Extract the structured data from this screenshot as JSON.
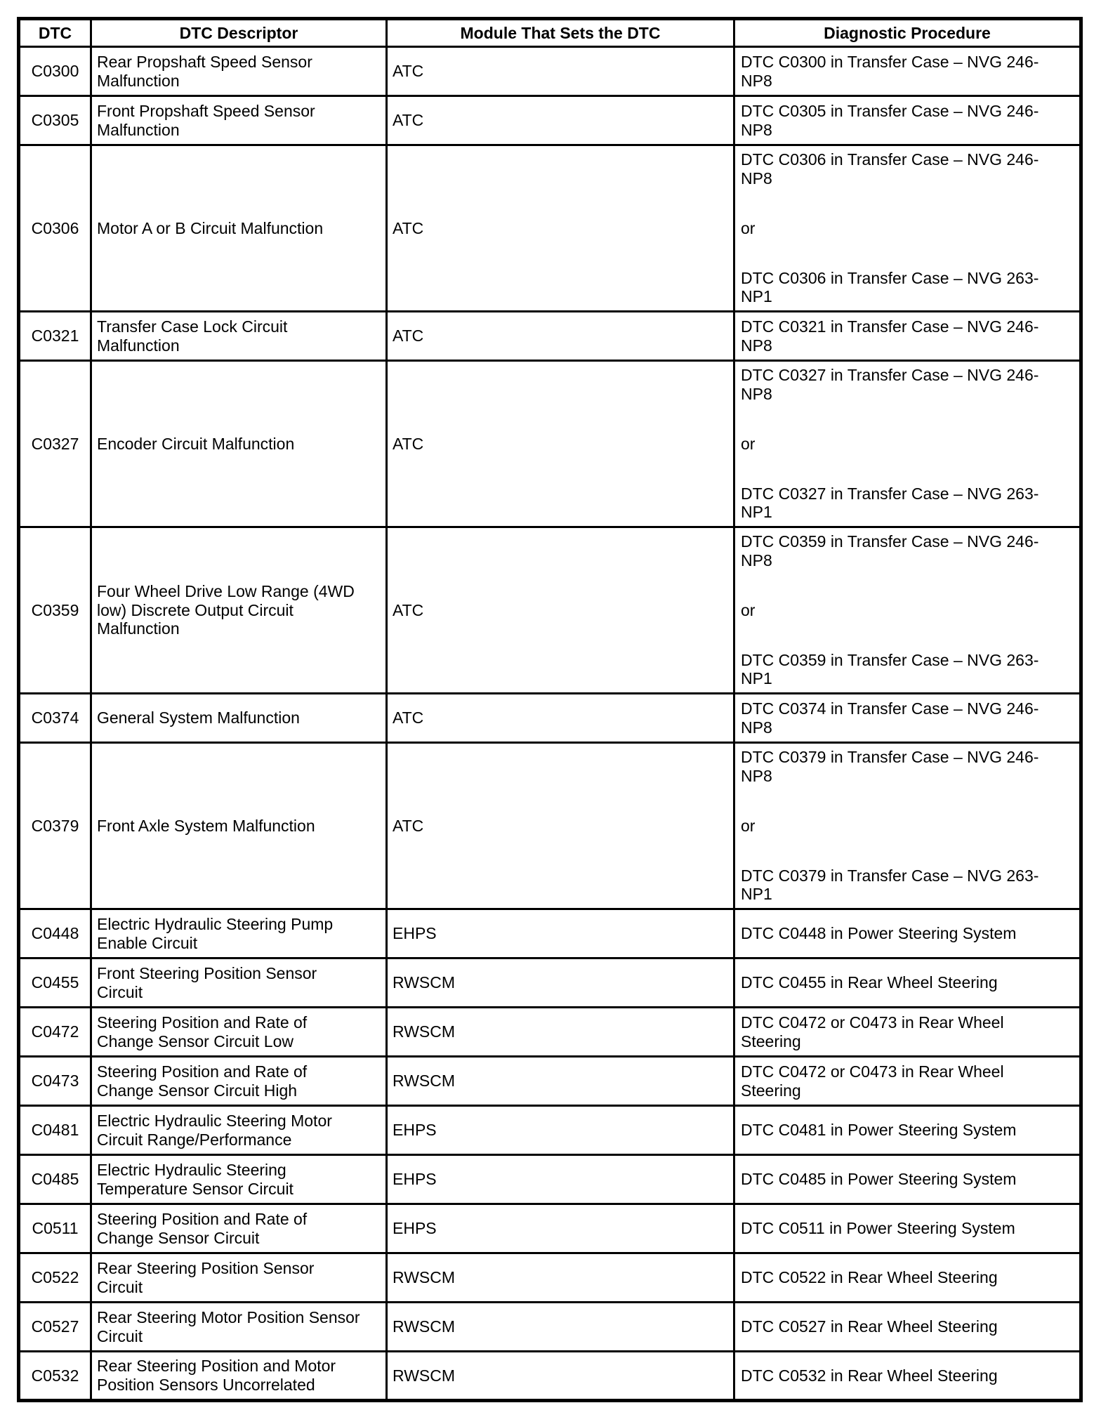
{
  "table": {
    "headers": [
      "DTC",
      "DTC Descriptor",
      "Module That Sets the DTC",
      "Diagnostic Procedure"
    ],
    "rows": [
      {
        "dtc": "C0300",
        "descriptor": "Rear Propshaft Speed Sensor Malfunction",
        "module": "ATC",
        "procedure": [
          "DTC C0300 in Transfer Case – NVG 246-NP8"
        ]
      },
      {
        "dtc": "C0305",
        "descriptor": "Front Propshaft Speed Sensor Malfunction",
        "module": "ATC",
        "procedure": [
          "DTC C0305 in Transfer Case – NVG 246-NP8"
        ]
      },
      {
        "dtc": "C0306",
        "descriptor": "Motor A or B Circuit Malfunction",
        "module": "ATC",
        "procedure": [
          "DTC C0306 in Transfer Case – NVG 246-NP8",
          "or",
          "DTC C0306 in Transfer Case – NVG 263-NP1"
        ]
      },
      {
        "dtc": "C0321",
        "descriptor": "Transfer Case Lock Circuit Malfunction",
        "module": "ATC",
        "procedure": [
          "DTC C0321 in Transfer Case – NVG 246-NP8"
        ]
      },
      {
        "dtc": "C0327",
        "descriptor": "Encoder Circuit Malfunction",
        "module": "ATC",
        "procedure": [
          "DTC C0327 in Transfer Case – NVG 246-NP8",
          "or",
          "DTC C0327 in Transfer Case – NVG 263-NP1"
        ]
      },
      {
        "dtc": "C0359",
        "descriptor": "Four Wheel Drive Low Range (4WD low) Discrete Output Circuit Malfunction",
        "module": "ATC",
        "procedure": [
          "DTC C0359 in Transfer Case – NVG 246-NP8",
          "or",
          "DTC C0359 in Transfer Case – NVG 263-NP1"
        ]
      },
      {
        "dtc": "C0374",
        "descriptor": "General System Malfunction",
        "module": "ATC",
        "procedure": [
          "DTC C0374 in Transfer Case – NVG 246-NP8"
        ]
      },
      {
        "dtc": "C0379",
        "descriptor": "Front Axle System Malfunction",
        "module": "ATC",
        "procedure": [
          "DTC C0379 in Transfer Case – NVG 246-NP8",
          "or",
          "DTC C0379 in Transfer Case – NVG 263-NP1"
        ]
      },
      {
        "dtc": "C0448",
        "descriptor": "Electric Hydraulic Steering Pump Enable Circuit",
        "module": "EHPS",
        "procedure": [
          "DTC C0448 in Power Steering System"
        ]
      },
      {
        "dtc": "C0455",
        "descriptor": "Front Steering Position Sensor Circuit",
        "module": "RWSCM",
        "procedure": [
          "DTC C0455 in Rear Wheel Steering"
        ]
      },
      {
        "dtc": "C0472",
        "descriptor": "Steering Position and Rate of Change Sensor Circuit Low",
        "module": "RWSCM",
        "procedure": [
          "DTC C0472 or C0473 in Rear Wheel Steering"
        ]
      },
      {
        "dtc": "C0473",
        "descriptor": "Steering Position and Rate of Change Sensor Circuit High",
        "module": "RWSCM",
        "procedure": [
          "DTC C0472 or C0473 in Rear Wheel Steering"
        ]
      },
      {
        "dtc": "C0481",
        "descriptor": "Electric Hydraulic Steering Motor Circuit Range/Performance",
        "module": "EHPS",
        "procedure": [
          "DTC C0481 in Power Steering System"
        ]
      },
      {
        "dtc": "C0485",
        "descriptor": "Electric Hydraulic Steering Temperature Sensor Circuit",
        "module": "EHPS",
        "procedure": [
          "DTC C0485 in Power Steering System"
        ]
      },
      {
        "dtc": "C0511",
        "descriptor": "Steering Position and Rate of Change Sensor Circuit",
        "module": "EHPS",
        "procedure": [
          "DTC C0511 in Power Steering System"
        ]
      },
      {
        "dtc": "C0522",
        "descriptor": "Rear Steering Position Sensor Circuit",
        "module": "RWSCM",
        "procedure": [
          "DTC C0522 in Rear Wheel Steering"
        ]
      },
      {
        "dtc": "C0527",
        "descriptor": "Rear Steering Motor Position Sensor Circuit",
        "module": "RWSCM",
        "procedure": [
          "DTC C0527 in Rear Wheel Steering"
        ]
      },
      {
        "dtc": "C0532",
        "descriptor": "Rear Steering Position and Motor Position Sensors Uncorrelated",
        "module": "RWSCM",
        "procedure": [
          "DTC C0532 in Rear Wheel Steering"
        ]
      }
    ]
  }
}
